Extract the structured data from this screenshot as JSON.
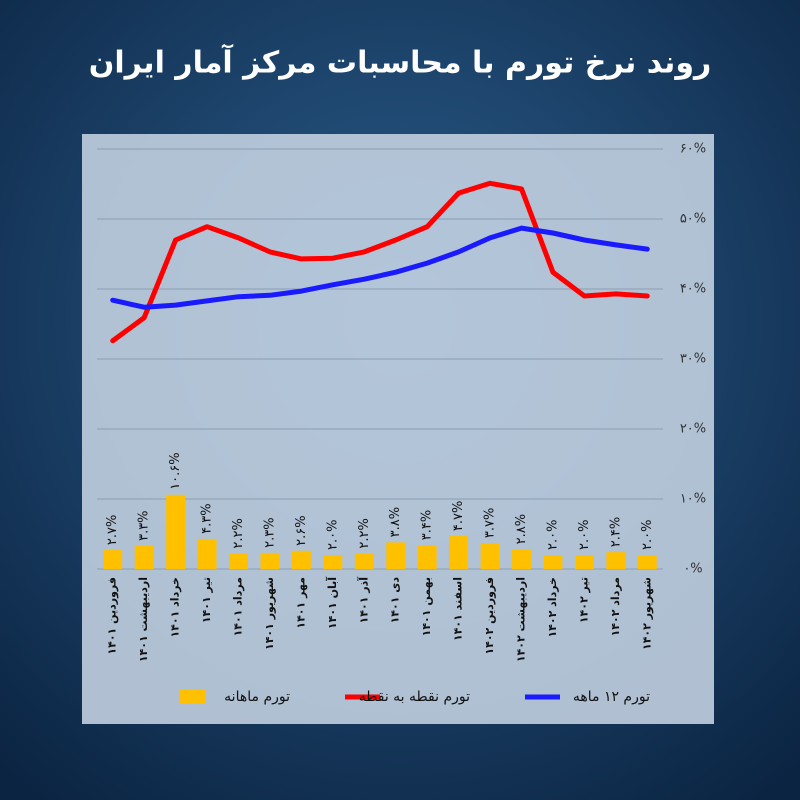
{
  "chart_data": {
    "type": "bar_line",
    "title": "روند نرخ تورم با محاسبات مرکز آمار ایران",
    "categories": [
      "فروردین ۱۴۰۱",
      "اردیبهشت ۱۴۰۱",
      "خرداد ۱۴۰۱",
      "تیر ۱۴۰۱",
      "مرداد ۱۴۰۱",
      "شهریور ۱۴۰۱",
      "مهر ۱۴۰۱",
      "آبان ۱۴۰۱",
      "آذر ۱۴۰۱",
      "دی ۱۴۰۱",
      "بهمن ۱۴۰۱",
      "اسفند ۱۴۰۱",
      "فروردین ۱۴۰۲",
      "اردیبهشت ۱۴۰۲",
      "خرداد ۱۴۰۲",
      "تیر ۱۴۰۲",
      "مرداد ۱۴۰۲",
      "شهریور ۱۴۰۲"
    ],
    "series": [
      {
        "name": "تورم ماهانه",
        "type": "bar",
        "color": "#ffc000",
        "values": [
          2.7,
          3.3,
          10.6,
          4.3,
          2.2,
          2.3,
          2.6,
          2.0,
          2.2,
          3.8,
          3.4,
          4.7,
          3.7,
          2.8,
          2.0,
          2.0,
          2.4,
          2.0
        ],
        "value_labels": [
          "۲.۷%",
          "۳.۳%",
          "۱۰.۶%",
          "۴.۳%",
          "۲.۲%",
          "۲.۳%",
          "۲.۶%",
          "۲.۰%",
          "۲.۲%",
          "۳.۸%",
          "۳.۴%",
          "۴.۷%",
          "۳.۷%",
          "۲.۸%",
          "۲.۰%",
          "۲.۰%",
          "۲.۴%",
          "۲.۰%"
        ]
      },
      {
        "name": "تورم نقطه به نقطه",
        "type": "line",
        "color": "#ff0000",
        "values": [
          32.6,
          35.9,
          47.0,
          48.9,
          47.3,
          45.3,
          44.3,
          44.4,
          45.3,
          47.0,
          48.9,
          53.7,
          55.1,
          54.3,
          42.4,
          39.0,
          39.3,
          39.0
        ]
      },
      {
        "name": "تورم ۱۲ ماهه",
        "type": "line",
        "color": "#1a1aff",
        "values": [
          38.4,
          37.4,
          37.7,
          38.3,
          38.9,
          39.1,
          39.7,
          40.6,
          41.4,
          42.4,
          43.7,
          45.3,
          47.3,
          48.7,
          48.0,
          47.0,
          46.3,
          45.7
        ]
      }
    ],
    "ylim": [
      0,
      60
    ],
    "yticks": [
      {
        "value": 0,
        "label": "۰%"
      },
      {
        "value": 10,
        "label": "۱۰%"
      },
      {
        "value": 20,
        "label": "۲۰%"
      },
      {
        "value": 30,
        "label": "۳۰%"
      },
      {
        "value": 40,
        "label": "۴۰%"
      },
      {
        "value": 50,
        "label": "۵۰%"
      },
      {
        "value": 60,
        "label": "۶۰%"
      }
    ],
    "grid": true
  }
}
